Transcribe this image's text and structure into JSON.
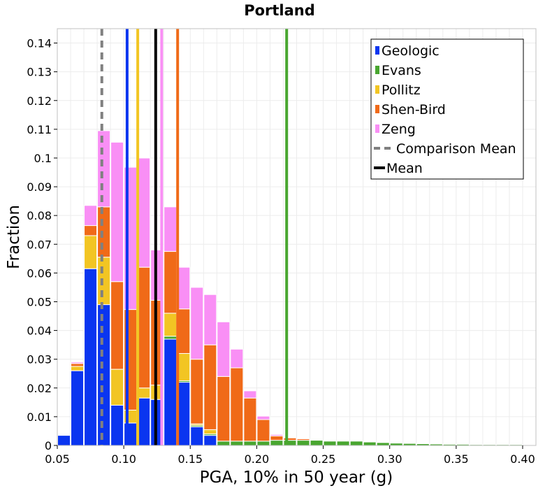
{
  "chart_data": {
    "type": "bar",
    "stacked": true,
    "title": "Portland",
    "xlabel": "PGA, 10% in 50 year (g)",
    "ylabel": "Fraction",
    "xlim": [
      0.05,
      0.41
    ],
    "ylim": [
      0,
      0.145
    ],
    "xticks": [
      0.05,
      0.1,
      0.15,
      0.2,
      0.25,
      0.3,
      0.35,
      0.4
    ],
    "xtick_labels": [
      "0.05",
      "0.10",
      "0.15",
      "0.20",
      "0.25",
      "0.30",
      "0.35",
      "0.40"
    ],
    "yticks": [
      0,
      0.01,
      0.02,
      0.03,
      0.04,
      0.05,
      0.06,
      0.07,
      0.08,
      0.09,
      0.1,
      0.11,
      0.12,
      0.13,
      0.14
    ],
    "ytick_labels": [
      "0",
      "0.01",
      "0.02",
      "0.03",
      "0.04",
      "0.05",
      "0.06",
      "0.07",
      "0.08",
      "0.09",
      "0.1",
      "0.11",
      "0.12",
      "0.13",
      "0.14"
    ],
    "grid": true,
    "legend_position": "top-right",
    "bin_width": 0.01,
    "bin_starts": [
      0.05,
      0.06,
      0.07,
      0.08,
      0.09,
      0.1,
      0.11,
      0.12,
      0.13,
      0.14,
      0.15,
      0.16,
      0.17,
      0.18,
      0.19,
      0.2,
      0.21,
      0.22,
      0.23,
      0.24,
      0.25,
      0.26,
      0.27,
      0.28,
      0.29,
      0.3,
      0.31,
      0.32,
      0.33,
      0.34,
      0.35,
      0.36,
      0.37,
      0.38,
      0.39
    ],
    "series": [
      {
        "name": "Geologic",
        "color": "#0a35f0",
        "values": [
          0.0035,
          0.026,
          0.0615,
          0.049,
          0.014,
          0.0078,
          0.0165,
          0.016,
          0.037,
          0.022,
          0.0065,
          0.0035,
          0,
          0,
          0,
          0,
          0,
          0,
          0,
          0,
          0,
          0,
          0,
          0,
          0,
          0,
          0,
          0,
          0,
          0,
          0,
          0,
          0,
          0,
          0
        ]
      },
      {
        "name": "Evans",
        "color": "#48a62f",
        "values": [
          0,
          0,
          0,
          0,
          0,
          0,
          0,
          0,
          0.001,
          0.0005,
          0.0005,
          0.0005,
          0.0015,
          0.0015,
          0.0015,
          0.0015,
          0.0018,
          0.0018,
          0.0018,
          0.0018,
          0.0015,
          0.0015,
          0.0015,
          0.0012,
          0.001,
          0.0008,
          0.0007,
          0.0006,
          0.0005,
          0.0004,
          0.0004,
          0.0003,
          0.0003,
          0.0003,
          0.0003
        ]
      },
      {
        "name": "Pollitz",
        "color": "#f2c523",
        "values": [
          0,
          0.0015,
          0.0115,
          0.0165,
          0.0125,
          0.0045,
          0.0035,
          0.005,
          0.008,
          0.0095,
          0.0005,
          0.0015,
          0,
          0,
          0,
          0,
          0,
          0,
          0,
          0,
          0,
          0,
          0,
          0,
          0,
          0,
          0,
          0,
          0,
          0,
          0,
          0,
          0,
          0,
          0
        ]
      },
      {
        "name": "Shen-Bird",
        "color": "#f06a18",
        "values": [
          0,
          0.001,
          0.0035,
          0.0175,
          0.0305,
          0.035,
          0.042,
          0.0295,
          0.0215,
          0.0155,
          0.0225,
          0.0295,
          0.0225,
          0.0255,
          0.015,
          0.0075,
          0.0015,
          0.0008,
          0.0005,
          0,
          0,
          0,
          0,
          0,
          0,
          0,
          0,
          0,
          0,
          0,
          0,
          0,
          0,
          0,
          0
        ]
      },
      {
        "name": "Zeng",
        "color": "#f98ff5",
        "values": [
          0,
          0.0005,
          0.007,
          0.0265,
          0.0485,
          0.0495,
          0.038,
          0.0175,
          0.0155,
          0.0145,
          0.025,
          0.0175,
          0.019,
          0.0065,
          0.0025,
          0.0012,
          0.0005,
          0,
          0,
          0,
          0,
          0,
          0,
          0,
          0,
          0,
          0,
          0,
          0,
          0,
          0,
          0,
          0,
          0,
          0
        ]
      }
    ],
    "vlines": [
      {
        "name": "Geologic mean",
        "x": 0.1025,
        "color": "#0a35f0",
        "style": "solid"
      },
      {
        "name": "Pollitz mean",
        "x": 0.1105,
        "color": "#f2c523",
        "style": "solid"
      },
      {
        "name": "Zeng mean",
        "x": 0.1285,
        "color": "#f98ff5",
        "style": "solid"
      },
      {
        "name": "Shen-Bird mean",
        "x": 0.1405,
        "color": "#f06a18",
        "style": "solid"
      },
      {
        "name": "Evans mean",
        "x": 0.2225,
        "color": "#48a62f",
        "style": "solid"
      },
      {
        "name": "Comparison Mean",
        "x": 0.0835,
        "color": "#808080",
        "style": "dashed"
      },
      {
        "name": "Mean",
        "x": 0.124,
        "color": "#000000",
        "style": "solid"
      }
    ],
    "legend": [
      {
        "label": "Geologic",
        "color": "#0a35f0",
        "kind": "patch"
      },
      {
        "label": "Evans",
        "color": "#48a62f",
        "kind": "patch"
      },
      {
        "label": "Pollitz",
        "color": "#f2c523",
        "kind": "patch"
      },
      {
        "label": "Shen-Bird",
        "color": "#f06a18",
        "kind": "patch"
      },
      {
        "label": "Zeng",
        "color": "#f98ff5",
        "kind": "patch"
      },
      {
        "label": "Comparison Mean",
        "color": "#808080",
        "kind": "dashed-line"
      },
      {
        "label": "Mean",
        "color": "#000000",
        "kind": "line"
      }
    ]
  }
}
